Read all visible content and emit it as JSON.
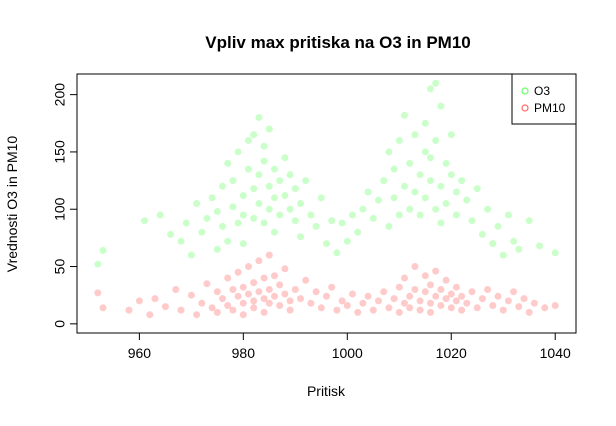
{
  "chart_data": {
    "type": "scatter",
    "title": "Vpliv max pritiska na O3 in PM10",
    "xlabel": "Pritisk",
    "ylabel": "Vrednosti O3 in PM10",
    "xlim": [
      948,
      1044
    ],
    "ylim": [
      -8,
      218
    ],
    "x_ticks": [
      960,
      980,
      1000,
      1020,
      1040
    ],
    "y_ticks": [
      0,
      50,
      100,
      150,
      200
    ],
    "legend_position": "top-right",
    "grid": false,
    "series": [
      {
        "name": "O3",
        "color": "#66ff66",
        "opacity": 0.35,
        "points": [
          [
            952,
            52
          ],
          [
            953,
            64
          ],
          [
            961,
            90
          ],
          [
            964,
            95
          ],
          [
            966,
            78
          ],
          [
            968,
            72
          ],
          [
            969,
            88
          ],
          [
            970,
            60
          ],
          [
            971,
            105
          ],
          [
            972,
            80
          ],
          [
            973,
            92
          ],
          [
            974,
            110
          ],
          [
            975,
            65
          ],
          [
            975,
            98
          ],
          [
            976,
            120
          ],
          [
            976,
            85
          ],
          [
            977,
            140
          ],
          [
            977,
            72
          ],
          [
            978,
            102
          ],
          [
            978,
            125
          ],
          [
            979,
            88
          ],
          [
            979,
            150
          ],
          [
            980,
            112
          ],
          [
            980,
            70
          ],
          [
            980,
            95
          ],
          [
            981,
            135
          ],
          [
            981,
            160
          ],
          [
            982,
            118
          ],
          [
            982,
            92
          ],
          [
            982,
            165
          ],
          [
            983,
            180
          ],
          [
            983,
            105
          ],
          [
            983,
            130
          ],
          [
            984,
            142
          ],
          [
            984,
            88
          ],
          [
            984,
            155
          ],
          [
            985,
            120
          ],
          [
            985,
            100
          ],
          [
            985,
            170
          ],
          [
            986,
            110
          ],
          [
            986,
            135
          ],
          [
            986,
            80
          ],
          [
            987,
            125
          ],
          [
            987,
            95
          ],
          [
            988,
            145
          ],
          [
            988,
            112
          ],
          [
            989,
            100
          ],
          [
            989,
            130
          ],
          [
            990,
            90
          ],
          [
            990,
            118
          ],
          [
            991,
            105
          ],
          [
            991,
            76
          ],
          [
            992,
            125
          ],
          [
            993,
            95
          ],
          [
            994,
            85
          ],
          [
            995,
            110
          ],
          [
            996,
            70
          ],
          [
            997,
            90
          ],
          [
            998,
            62
          ],
          [
            999,
            88
          ],
          [
            1000,
            72
          ],
          [
            1001,
            95
          ],
          [
            1002,
            80
          ],
          [
            1003,
            100
          ],
          [
            1004,
            115
          ],
          [
            1005,
            92
          ],
          [
            1006,
            108
          ],
          [
            1007,
            125
          ],
          [
            1008,
            85
          ],
          [
            1008,
            150
          ],
          [
            1009,
            110
          ],
          [
            1009,
            135
          ],
          [
            1010,
            95
          ],
          [
            1010,
            160
          ],
          [
            1011,
            120
          ],
          [
            1011,
            182
          ],
          [
            1012,
            140
          ],
          [
            1012,
            100
          ],
          [
            1013,
            115
          ],
          [
            1013,
            165
          ],
          [
            1014,
            130
          ],
          [
            1014,
            95
          ],
          [
            1015,
            150
          ],
          [
            1015,
            175
          ],
          [
            1015,
            110
          ],
          [
            1016,
            205
          ],
          [
            1016,
            125
          ],
          [
            1016,
            145
          ],
          [
            1017,
            210
          ],
          [
            1017,
            100
          ],
          [
            1017,
            160
          ],
          [
            1018,
            120
          ],
          [
            1018,
            190
          ],
          [
            1018,
            88
          ],
          [
            1019,
            140
          ],
          [
            1019,
            105
          ],
          [
            1020,
            130
          ],
          [
            1020,
            165
          ],
          [
            1021,
            115
          ],
          [
            1021,
            95
          ],
          [
            1022,
            125
          ],
          [
            1023,
            108
          ],
          [
            1024,
            90
          ],
          [
            1025,
            118
          ],
          [
            1026,
            78
          ],
          [
            1027,
            100
          ],
          [
            1028,
            70
          ],
          [
            1029,
            85
          ],
          [
            1030,
            60
          ],
          [
            1031,
            95
          ],
          [
            1032,
            72
          ],
          [
            1033,
            65
          ],
          [
            1035,
            90
          ],
          [
            1037,
            68
          ],
          [
            1040,
            62
          ]
        ]
      },
      {
        "name": "PM10",
        "color": "#ff6666",
        "opacity": 0.35,
        "points": [
          [
            952,
            27
          ],
          [
            953,
            14
          ],
          [
            958,
            12
          ],
          [
            960,
            20
          ],
          [
            962,
            8
          ],
          [
            963,
            22
          ],
          [
            965,
            15
          ],
          [
            967,
            30
          ],
          [
            968,
            12
          ],
          [
            970,
            25
          ],
          [
            971,
            8
          ],
          [
            972,
            18
          ],
          [
            973,
            35
          ],
          [
            974,
            14
          ],
          [
            975,
            28
          ],
          [
            975,
            10
          ],
          [
            976,
            22
          ],
          [
            977,
            40
          ],
          [
            977,
            16
          ],
          [
            978,
            30
          ],
          [
            978,
            12
          ],
          [
            979,
            24
          ],
          [
            979,
            45
          ],
          [
            980,
            18
          ],
          [
            980,
            32
          ],
          [
            980,
            8
          ],
          [
            981,
            26
          ],
          [
            981,
            50
          ],
          [
            982,
            20
          ],
          [
            982,
            36
          ],
          [
            982,
            14
          ],
          [
            983,
            28
          ],
          [
            983,
            55
          ],
          [
            984,
            22
          ],
          [
            984,
            40
          ],
          [
            984,
            10
          ],
          [
            985,
            30
          ],
          [
            985,
            18
          ],
          [
            985,
            60
          ],
          [
            986,
            24
          ],
          [
            986,
            42
          ],
          [
            987,
            16
          ],
          [
            987,
            34
          ],
          [
            988,
            26
          ],
          [
            988,
            48
          ],
          [
            989,
            20
          ],
          [
            989,
            12
          ],
          [
            990,
            30
          ],
          [
            991,
            22
          ],
          [
            992,
            38
          ],
          [
            993,
            18
          ],
          [
            994,
            28
          ],
          [
            995,
            14
          ],
          [
            996,
            24
          ],
          [
            997,
            32
          ],
          [
            998,
            12
          ],
          [
            999,
            20
          ],
          [
            1000,
            16
          ],
          [
            1001,
            26
          ],
          [
            1002,
            10
          ],
          [
            1003,
            18
          ],
          [
            1004,
            24
          ],
          [
            1005,
            12
          ],
          [
            1006,
            20
          ],
          [
            1007,
            28
          ],
          [
            1008,
            14
          ],
          [
            1009,
            22
          ],
          [
            1010,
            32
          ],
          [
            1010,
            10
          ],
          [
            1011,
            18
          ],
          [
            1011,
            40
          ],
          [
            1012,
            24
          ],
          [
            1012,
            14
          ],
          [
            1013,
            30
          ],
          [
            1013,
            50
          ],
          [
            1014,
            20
          ],
          [
            1014,
            12
          ],
          [
            1015,
            28
          ],
          [
            1015,
            42
          ],
          [
            1016,
            18
          ],
          [
            1016,
            34
          ],
          [
            1016,
            10
          ],
          [
            1017,
            24
          ],
          [
            1017,
            46
          ],
          [
            1018,
            16
          ],
          [
            1018,
            30
          ],
          [
            1019,
            22
          ],
          [
            1019,
            38
          ],
          [
            1020,
            14
          ],
          [
            1020,
            26
          ],
          [
            1021,
            20
          ],
          [
            1021,
            32
          ],
          [
            1022,
            12
          ],
          [
            1022,
            24
          ],
          [
            1023,
            18
          ],
          [
            1024,
            28
          ],
          [
            1025,
            14
          ],
          [
            1026,
            22
          ],
          [
            1027,
            30
          ],
          [
            1028,
            16
          ],
          [
            1029,
            24
          ],
          [
            1030,
            12
          ],
          [
            1031,
            20
          ],
          [
            1032,
            28
          ],
          [
            1033,
            15
          ],
          [
            1034,
            22
          ],
          [
            1035,
            10
          ],
          [
            1036,
            18
          ],
          [
            1038,
            14
          ],
          [
            1040,
            16
          ]
        ]
      }
    ]
  }
}
